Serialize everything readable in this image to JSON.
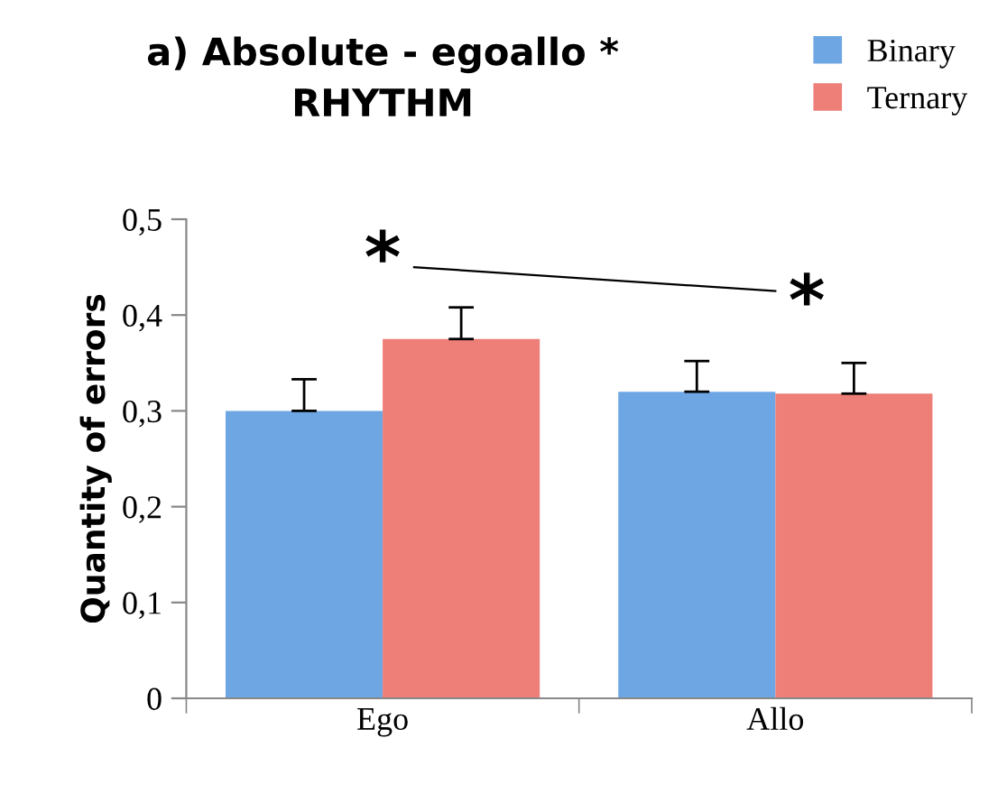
{
  "chart_data": {
    "type": "bar",
    "title": "a) Absolute - egoallo *\nRHYTHM",
    "ylabel": "Quantity of errors",
    "categories": [
      "Ego",
      "Allo"
    ],
    "series": [
      {
        "name": "Binary",
        "color": "#6ea6e4",
        "values": [
          0.3,
          0.32
        ],
        "errors": [
          [
            0.3,
            0.333
          ],
          [
            0.32,
            0.352
          ]
        ]
      },
      {
        "name": "Ternary",
        "color": "#ee7f78",
        "values": [
          0.375,
          0.318
        ],
        "errors": [
          [
            0.375,
            0.408
          ],
          [
            0.318,
            0.35
          ]
        ]
      }
    ],
    "ylim": [
      0,
      0.5
    ],
    "yticks": [
      {
        "value": 0,
        "label": "0"
      },
      {
        "value": 0.1,
        "label": "0,1"
      },
      {
        "value": 0.2,
        "label": "0,2"
      },
      {
        "value": 0.3,
        "label": "0,3"
      },
      {
        "value": 0.4,
        "label": "0,4"
      },
      {
        "value": 0.5,
        "label": "0,5"
      }
    ],
    "annotations": [
      "*",
      "*"
    ],
    "grid": false,
    "legend": "top right"
  }
}
